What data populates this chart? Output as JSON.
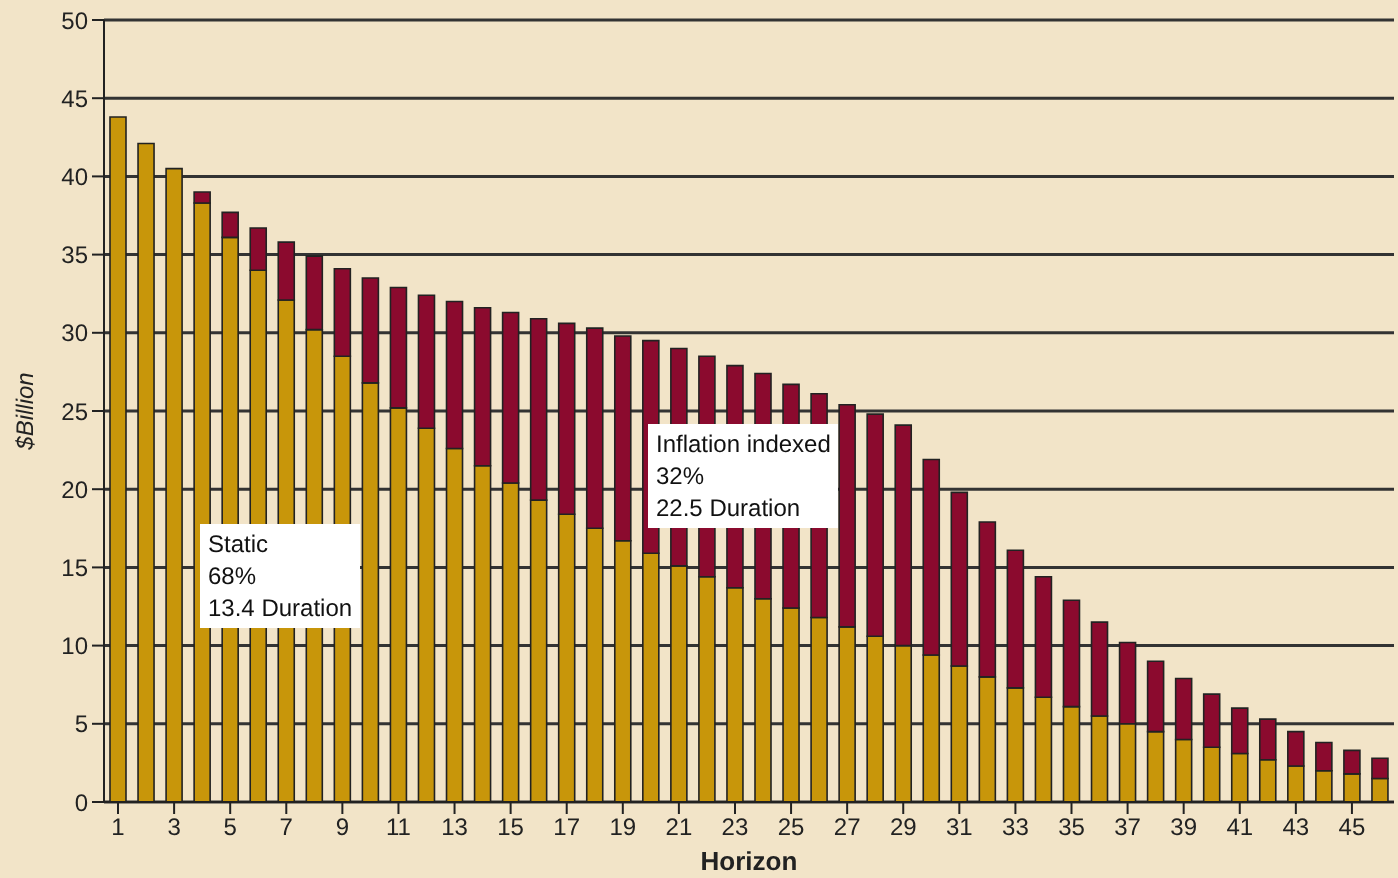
{
  "chart_data": {
    "type": "bar",
    "stacked": true,
    "xlabel": "Horizon",
    "ylabel": "$Billion",
    "x": [
      1,
      2,
      3,
      4,
      5,
      6,
      7,
      8,
      9,
      10,
      11,
      12,
      13,
      14,
      15,
      16,
      17,
      18,
      19,
      20,
      21,
      22,
      23,
      24,
      25,
      26,
      27,
      28,
      29,
      30,
      31,
      32,
      33,
      34,
      35,
      36,
      37,
      38,
      39,
      40,
      41,
      42,
      43,
      44,
      45,
      46
    ],
    "xlim": [
      0.5,
      46.5
    ],
    "xticks": [
      1,
      3,
      5,
      7,
      9,
      11,
      13,
      15,
      17,
      19,
      21,
      23,
      25,
      27,
      29,
      31,
      33,
      35,
      37,
      39,
      41,
      43,
      45
    ],
    "series": [
      {
        "color": "#c8960a",
        "values": [
          43.8,
          42.1,
          40.5,
          38.3,
          36.1,
          34.0,
          32.1,
          30.2,
          28.5,
          26.8,
          25.2,
          23.9,
          22.6,
          21.5,
          20.4,
          19.3,
          18.4,
          17.5,
          16.7,
          15.9,
          15.1,
          14.4,
          13.7,
          13.0,
          12.4,
          11.8,
          11.2,
          10.6,
          10.0,
          9.4,
          8.7,
          8.0,
          7.3,
          6.7,
          6.1,
          5.5,
          5.0,
          4.5,
          4.0,
          3.5,
          3.1,
          2.7,
          2.3,
          2.0,
          1.8,
          1.5
        ]
      },
      {
        "color": "#8b0a2e",
        "values": [
          0,
          0,
          0,
          0.7,
          1.6,
          2.7,
          3.7,
          4.7,
          5.6,
          6.7,
          7.7,
          8.5,
          9.4,
          10.1,
          10.9,
          11.6,
          12.2,
          12.8,
          13.1,
          13.6,
          13.9,
          14.1,
          14.2,
          14.4,
          14.3,
          14.3,
          14.2,
          14.2,
          14.1,
          12.5,
          11.1,
          9.9,
          8.8,
          7.7,
          6.8,
          6.0,
          5.2,
          4.5,
          3.9,
          3.4,
          2.9,
          2.6,
          2.2,
          1.8,
          1.5,
          1.3
        ]
      }
    ],
    "ylim": [
      0,
      50
    ],
    "yticks": [
      0,
      5,
      10,
      15,
      20,
      25,
      30,
      35,
      40,
      45,
      50
    ],
    "grid": "y",
    "legend": false,
    "annotations": [
      "Static\n68%\n13.4 Duration",
      "Inflation indexed\n32%\n22.5 Duration"
    ]
  }
}
